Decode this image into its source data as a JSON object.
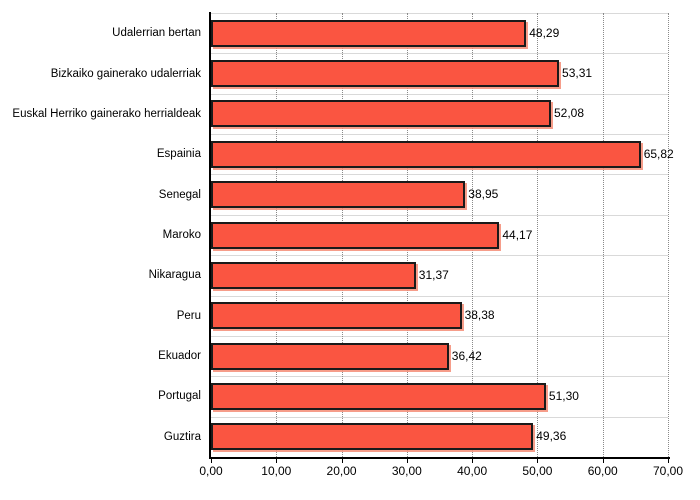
{
  "chart_data": {
    "type": "bar",
    "orientation": "horizontal",
    "title": "",
    "legend": "none",
    "categories": [
      "Udalerrian bertan",
      "Bizkaiko gainerako udalerriak",
      "Euskal Herriko gainerako herrialdeak",
      "Espainia",
      "Senegal",
      "Maroko",
      "Nikaragua",
      "Peru",
      "Ekuador",
      "Portugal",
      "Guztira"
    ],
    "values": [
      48.29,
      53.31,
      52.08,
      65.82,
      38.95,
      44.17,
      31.37,
      38.38,
      36.42,
      51.3,
      49.36
    ],
    "value_labels": [
      "48,29",
      "53,31",
      "52,08",
      "65,82",
      "38,95",
      "44,17",
      "31,37",
      "38,38",
      "36,42",
      "51,30",
      "49,36"
    ],
    "x_ticks": [
      "0,00",
      "10,00",
      "20,00",
      "30,00",
      "40,00",
      "50,00",
      "60,00",
      "70,00"
    ],
    "xlim": [
      0,
      70
    ],
    "grid": "solid horizontal row lines, dotted vertical tick lines",
    "colors": {
      "bar_fill": "#fa5541",
      "bar_border": "#1a1a1a",
      "bar_shadow": "rgba(244, 140, 118, 0.85)",
      "grid_solid": "#d9d9d9",
      "grid_dotted": "#8a8a8a",
      "axis": "#000000",
      "text": "#000000",
      "background": "#ffffff"
    }
  }
}
